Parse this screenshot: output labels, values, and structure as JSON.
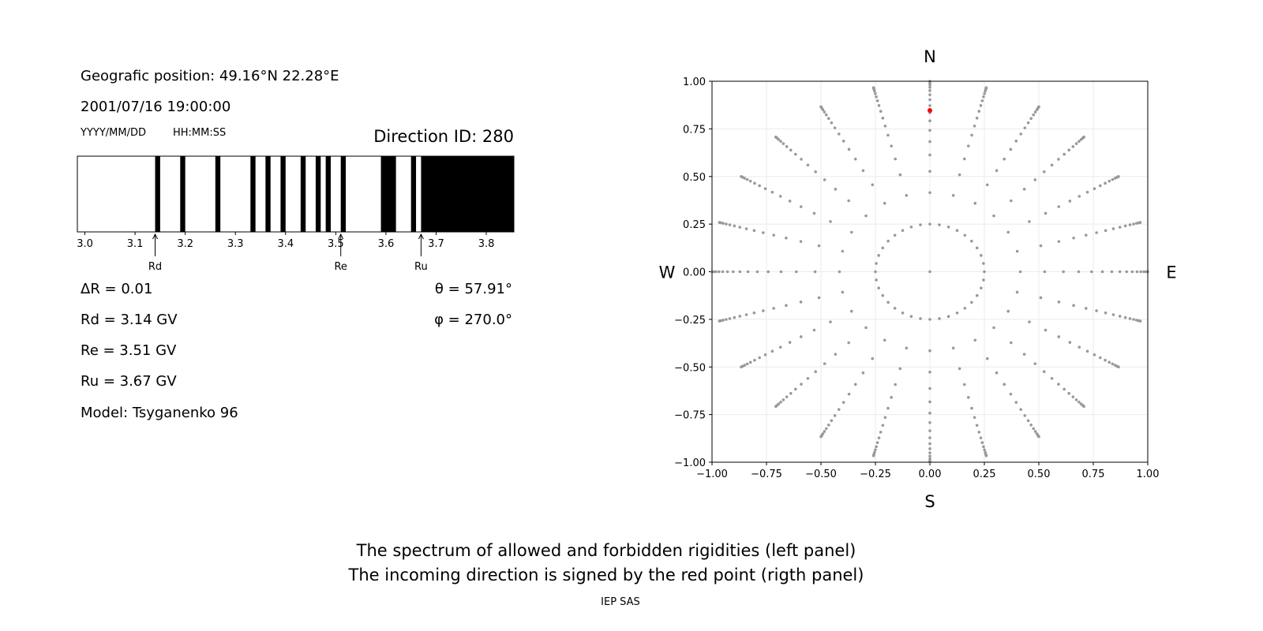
{
  "left_panel": {
    "position": "Geografic position: 49.16°N 22.28°E",
    "datetime": "2001/07/16 19:00:00",
    "date_format": "YYYY/MM/DD",
    "time_format": "HH:MM:SS",
    "direction_id": "Direction ID: 280",
    "delta_r": "ΔR = 0.01",
    "rd": "Rd = 3.14 GV",
    "re": "Re = 3.51 GV",
    "ru": "Ru = 3.67 GV",
    "model": "Model: Tsyganenko 96",
    "theta": "θ = 57.91°",
    "phi": "φ = 270.0°"
  },
  "footer": {
    "line1": "The spectrum of allowed and forbidden rigidities (left panel)",
    "line2": "The incoming direction is signed by the red point (rigth panel)",
    "credit": "IEP SAS"
  },
  "chart_data": [
    {
      "type": "bar",
      "kind": "rigidity spectrum (black = forbidden, white = allowed)",
      "xlim": [
        2.985,
        3.855
      ],
      "xticks": [
        "3.0",
        "3.1",
        "3.2",
        "3.3",
        "3.4",
        "3.5",
        "3.6",
        "3.7",
        "3.8"
      ],
      "forbidden_bands": [
        [
          3.14,
          3.15
        ],
        [
          3.19,
          3.2
        ],
        [
          3.26,
          3.27
        ],
        [
          3.33,
          3.34
        ],
        [
          3.36,
          3.37
        ],
        [
          3.39,
          3.4
        ],
        [
          3.43,
          3.44
        ],
        [
          3.46,
          3.47
        ],
        [
          3.48,
          3.49
        ],
        [
          3.51,
          3.52
        ],
        [
          3.59,
          3.62
        ],
        [
          3.65,
          3.66
        ],
        [
          3.67,
          3.855
        ]
      ],
      "markers": [
        {
          "label": "Rd",
          "value": 3.14
        },
        {
          "label": "Re",
          "value": 3.51
        },
        {
          "label": "Ru",
          "value": 3.67
        }
      ],
      "colors": {
        "forbidden": "#000000",
        "allowed": "#ffffff"
      }
    },
    {
      "type": "scatter",
      "xlim": [
        -1,
        1
      ],
      "ylim": [
        -1,
        1
      ],
      "xticks": [
        "−1.00",
        "−0.75",
        "−0.50",
        "−0.25",
        "0.00",
        "0.25",
        "0.50",
        "0.75",
        "1.00"
      ],
      "yticks": [
        "−1.00",
        "−0.75",
        "−0.50",
        "−0.25",
        "0.00",
        "0.25",
        "0.50",
        "0.75",
        "1.00"
      ],
      "grid": true,
      "compass": {
        "top": "N",
        "bottom": "S",
        "left": "W",
        "right": "E"
      },
      "directions": {
        "center": [
          0,
          0
        ],
        "inner_ring_radius": 0.25,
        "inner_ring_azimuth_step_deg": 10,
        "ray_azimuth_step_deg": 15,
        "ray_radii": [
          0.415,
          0.527,
          0.613,
          0.683,
          0.742,
          0.792,
          0.835,
          0.872,
          0.903,
          0.929,
          0.951,
          0.968,
          0.982,
          0.992,
          0.998,
          1.0
        ]
      },
      "incoming_direction": {
        "x": 0.0,
        "y": 0.847
      },
      "colors": {
        "points": "#999999",
        "incoming": "#ff0000"
      }
    }
  ]
}
